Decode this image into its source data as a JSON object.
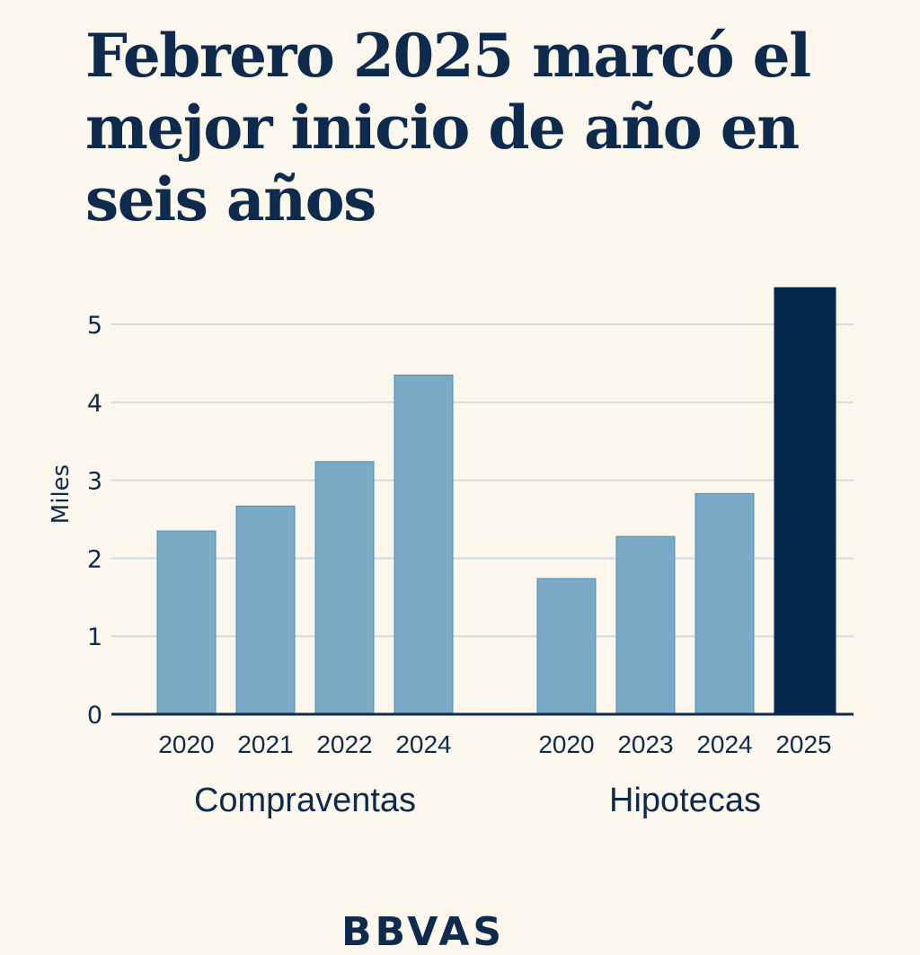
{
  "title": "Febrero 2025 marcó el mejor inicio de año en seis años",
  "brand_partial": "BBVAS",
  "colors": {
    "background": "#fcf7ec",
    "bar": "#7aaac6",
    "bar_border": "#4f8fb8",
    "highlight": "#03264b",
    "grid": "#cfdde2",
    "text": "#0e2a4c"
  },
  "chart_data": {
    "type": "bar",
    "title": "Febrero 2025 marcó el mejor inicio de año en seis años",
    "xlabel": "",
    "ylabel": "Miles",
    "ylim": [
      0,
      5.5
    ],
    "yticks": [
      0,
      1,
      2,
      3,
      4,
      5
    ],
    "grid": true,
    "groups": [
      {
        "name": "Compraventas",
        "categories": [
          "2020",
          "2021",
          "2022",
          "2024"
        ],
        "values": [
          2.35,
          2.67,
          3.24,
          4.35
        ],
        "highlight": [
          false,
          false,
          false,
          false
        ]
      },
      {
        "name": "Hipotecas",
        "categories": [
          "2020",
          "2023",
          "2024",
          "2025"
        ],
        "values": [
          1.74,
          2.28,
          2.83,
          5.47
        ],
        "highlight": [
          false,
          false,
          false,
          true
        ]
      }
    ]
  }
}
